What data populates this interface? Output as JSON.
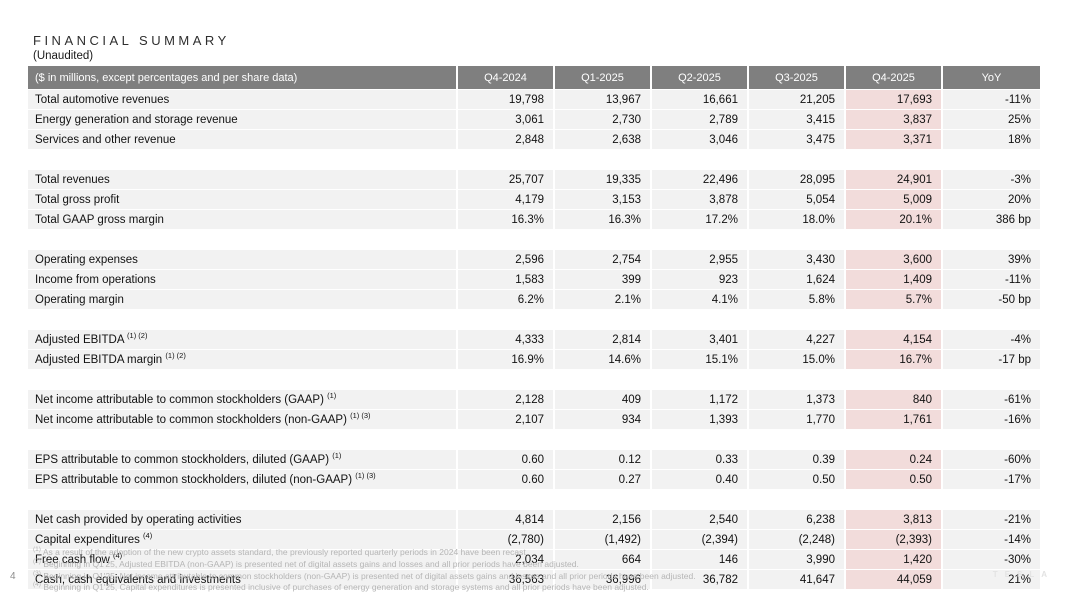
{
  "page": {
    "title": "FINANCIAL SUMMARY",
    "subtitle": "(Unaudited)",
    "page_number": "4",
    "watermark": "TESLA"
  },
  "colors": {
    "header_bg": "#7f7f7f",
    "row_bg": "#f2f2f2",
    "highlight_bg": "#f2dcdb",
    "header_text": "#ffffff",
    "footnote_text": "#b5b5b5"
  },
  "table": {
    "header_label": "($ in millions, except percentages and per share data)",
    "columns": [
      "Q4-2024",
      "Q1-2025",
      "Q2-2025",
      "Q3-2025",
      "Q4-2025",
      "YoY"
    ],
    "highlight_column": "Q4-2025",
    "sections": [
      {
        "rows": [
          {
            "label": "Total automotive revenues",
            "sup": "",
            "values": [
              "19,798",
              "13,967",
              "16,661",
              "21,205",
              "17,693",
              "-11%"
            ]
          },
          {
            "label": "Energy generation and storage revenue",
            "sup": "",
            "values": [
              "3,061",
              "2,730",
              "2,789",
              "3,415",
              "3,837",
              "25%"
            ]
          },
          {
            "label": "Services and other revenue",
            "sup": "",
            "values": [
              "2,848",
              "2,638",
              "3,046",
              "3,475",
              "3,371",
              "18%"
            ]
          }
        ]
      },
      {
        "rows": [
          {
            "label": "Total revenues",
            "sup": "",
            "values": [
              "25,707",
              "19,335",
              "22,496",
              "28,095",
              "24,901",
              "-3%"
            ]
          },
          {
            "label": "Total gross profit",
            "sup": "",
            "values": [
              "4,179",
              "3,153",
              "3,878",
              "5,054",
              "5,009",
              "20%"
            ]
          },
          {
            "label": "Total GAAP gross margin",
            "sup": "",
            "values": [
              "16.3%",
              "16.3%",
              "17.2%",
              "18.0%",
              "20.1%",
              "386 bp"
            ]
          }
        ]
      },
      {
        "rows": [
          {
            "label": "Operating expenses",
            "sup": "",
            "values": [
              "2,596",
              "2,754",
              "2,955",
              "3,430",
              "3,600",
              "39%"
            ]
          },
          {
            "label": "Income from operations",
            "sup": "",
            "values": [
              "1,583",
              "399",
              "923",
              "1,624",
              "1,409",
              "-11%"
            ]
          },
          {
            "label": "Operating margin",
            "sup": "",
            "values": [
              "6.2%",
              "2.1%",
              "4.1%",
              "5.8%",
              "5.7%",
              "-50 bp"
            ]
          }
        ]
      },
      {
        "rows": [
          {
            "label": "Adjusted EBITDA",
            "sup": "(1) (2)",
            "values": [
              "4,333",
              "2,814",
              "3,401",
              "4,227",
              "4,154",
              "-4%"
            ]
          },
          {
            "label": "Adjusted EBITDA margin",
            "sup": "(1) (2)",
            "values": [
              "16.9%",
              "14.6%",
              "15.1%",
              "15.0%",
              "16.7%",
              "-17 bp"
            ]
          }
        ]
      },
      {
        "rows": [
          {
            "label": "Net income attributable to common stockholders (GAAP)",
            "sup": "(1)",
            "values": [
              "2,128",
              "409",
              "1,172",
              "1,373",
              "840",
              "-61%"
            ]
          },
          {
            "label": "Net income attributable to common stockholders (non-GAAP)",
            "sup": "(1) (3)",
            "values": [
              "2,107",
              "934",
              "1,393",
              "1,770",
              "1,761",
              "-16%"
            ]
          }
        ]
      },
      {
        "rows": [
          {
            "label": "EPS attributable to common stockholders, diluted (GAAP)",
            "sup": "(1)",
            "values": [
              "0.60",
              "0.12",
              "0.33",
              "0.39",
              "0.24",
              "-60%"
            ]
          },
          {
            "label": "EPS attributable to common stockholders, diluted (non-GAAP)",
            "sup": "(1) (3)",
            "values": [
              "0.60",
              "0.27",
              "0.40",
              "0.50",
              "0.50",
              "-17%"
            ]
          }
        ]
      },
      {
        "rows": [
          {
            "label": "Net cash provided by operating activities",
            "sup": "",
            "values": [
              "4,814",
              "2,156",
              "2,540",
              "6,238",
              "3,813",
              "-21%"
            ]
          },
          {
            "label": "Capital expenditures",
            "sup": "(4)",
            "values": [
              "(2,780)",
              "(1,492)",
              "(2,394)",
              "(2,248)",
              "(2,393)",
              "-14%"
            ]
          },
          {
            "label": "Free cash flow",
            "sup": "(4)",
            "values": [
              "2,034",
              "664",
              "146",
              "3,990",
              "1,420",
              "-30%"
            ]
          },
          {
            "label": "Cash, cash equivalents and investments",
            "sup": "",
            "values": [
              "36,563",
              "36,996",
              "36,782",
              "41,647",
              "44,059",
              "21%"
            ]
          }
        ]
      }
    ]
  },
  "footnotes": [
    {
      "sup": "(1)",
      "text": "As a result of the adoption of the new crypto assets standard, the previously reported quarterly periods in 2024 have been recast."
    },
    {
      "sup": "(2)",
      "text": "Beginning in Q1'25, Adjusted EBITDA (non-GAAP) is presented net of digital assets gains and losses and all prior periods have been adjusted."
    },
    {
      "sup": "(3)",
      "text": "Beginning in Q1'25, Net income attributable to common stockholders (non-GAAP) is presented net of digital assets gains and losses and all prior periods have been adjusted."
    },
    {
      "sup": "(4)",
      "text": "Beginning in Q1'25, Capital expenditures is presented inclusive of purchases of energy generation and storage systems and all prior periods have been adjusted."
    }
  ]
}
